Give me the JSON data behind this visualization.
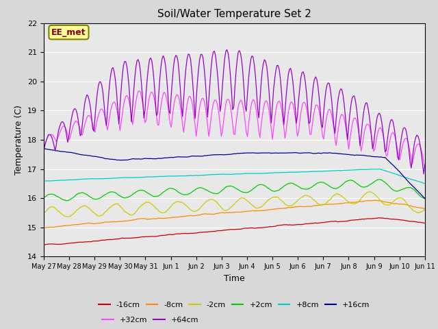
{
  "title": "Soil/Water Temperature Set 2",
  "xlabel": "Time",
  "ylabel": "Temperature (C)",
  "ylim": [
    14.0,
    22.0
  ],
  "yticks": [
    14.0,
    15.0,
    16.0,
    17.0,
    18.0,
    19.0,
    20.0,
    21.0,
    22.0
  ],
  "annotation_text": "EE_met",
  "annotation_bg": "#ffff99",
  "annotation_border": "#808000",
  "annotation_text_color": "#8b0000",
  "series": [
    {
      "label": "-16cm",
      "color": "#cc0000"
    },
    {
      "label": "-8cm",
      "color": "#ff8800"
    },
    {
      "label": "-2cm",
      "color": "#cccc00"
    },
    {
      "label": "+2cm",
      "color": "#00cc00"
    },
    {
      "label": "+8cm",
      "color": "#00cccc"
    },
    {
      "label": "+16cm",
      "color": "#000099"
    },
    {
      "label": "+32cm",
      "color": "#ff44ff"
    },
    {
      "label": "+64cm",
      "color": "#9900cc"
    }
  ],
  "xtick_labels": [
    "May 27",
    "May 28",
    "May 29",
    "May 30",
    "May 31",
    "Jun 1",
    "Jun 2",
    "Jun 3",
    "Jun 4",
    "Jun 5",
    "Jun 6",
    "Jun 7",
    "Jun 8",
    "Jun 9",
    "Jun 10",
    "Jun 11"
  ],
  "n_points": 336,
  "time_days": 15
}
